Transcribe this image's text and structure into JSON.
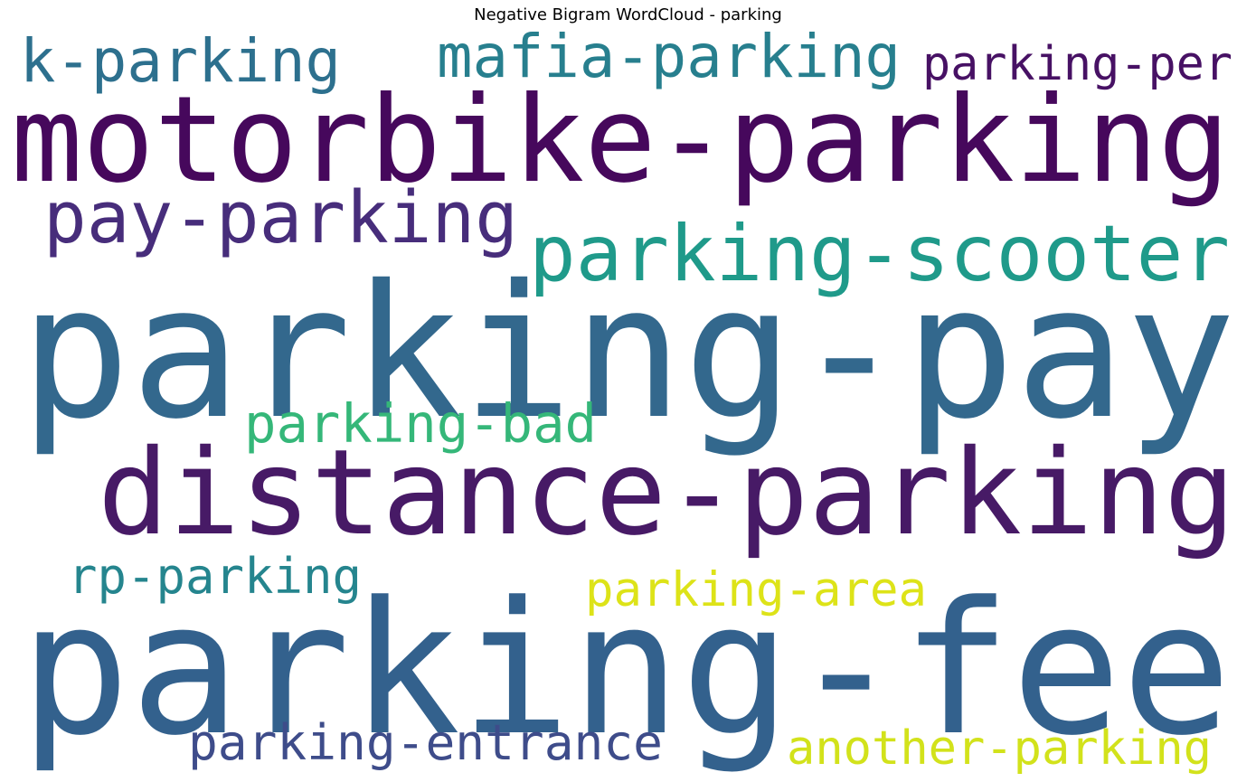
{
  "chart_data": {
    "type": "wordcloud",
    "title": "Negative Bigram WordCloud - parking",
    "colormap": "viridis",
    "background": "#ffffff",
    "words": [
      {
        "text": "parking-pay",
        "weight": 1.0,
        "color": "#33688d"
      },
      {
        "text": "parking-fee",
        "weight": 0.95,
        "color": "#33618d"
      },
      {
        "text": "motorbike-parking",
        "weight": 0.58,
        "color": "#46085c"
      },
      {
        "text": "distance-parking",
        "weight": 0.58,
        "color": "#471a66"
      },
      {
        "text": "parking-scooter",
        "weight": 0.36,
        "color": "#1f9a8a"
      },
      {
        "text": "pay-parking",
        "weight": 0.34,
        "color": "#472d7b"
      },
      {
        "text": "mafia-parking",
        "weight": 0.27,
        "color": "#277f8e"
      },
      {
        "text": "k-parking",
        "weight": 0.27,
        "color": "#2d708e"
      },
      {
        "text": "parking-bad",
        "weight": 0.25,
        "color": "#35b779"
      },
      {
        "text": "parking-entrance",
        "weight": 0.25,
        "color": "#3e4c8a"
      },
      {
        "text": "another-parking",
        "weight": 0.25,
        "color": "#d2e21b"
      },
      {
        "text": "parking-area",
        "weight": 0.23,
        "color": "#dde318"
      },
      {
        "text": "rp-parking",
        "weight": 0.23,
        "color": "#25858e"
      },
      {
        "text": "parking-per",
        "weight": 0.23,
        "color": "#471164"
      }
    ]
  }
}
